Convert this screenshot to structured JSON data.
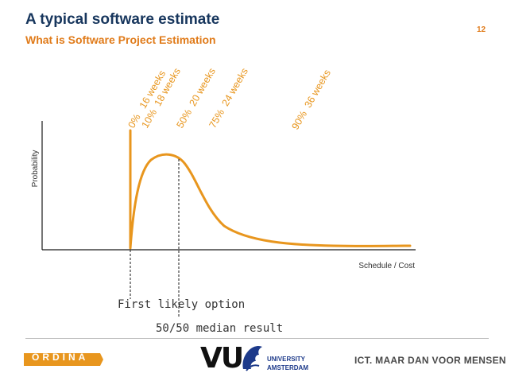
{
  "header": {
    "title": "A typical software estimate",
    "subtitle": "What is Software Project Estimation",
    "page_number": "12"
  },
  "diagram": {
    "y_axis_label": "Probability",
    "x_axis_label": "Schedule / Cost",
    "percentile_labels": [
      "0%   16 weeks",
      "10%  18 weeks",
      "50%  20 weeks",
      "75%  24 weeks",
      "90%  36 weeks"
    ],
    "annotation_first": "First likely option",
    "annotation_median": "50/50 median result",
    "curve_color": "#e8961e"
  },
  "footer": {
    "ordina_logo": "ORDINA",
    "vu_logo": "VU",
    "university_line1": "UNIVERSITY",
    "university_line2": "AMSTERDAM",
    "tagline": "ICT. MAAR DAN VOOR MENSEN"
  }
}
